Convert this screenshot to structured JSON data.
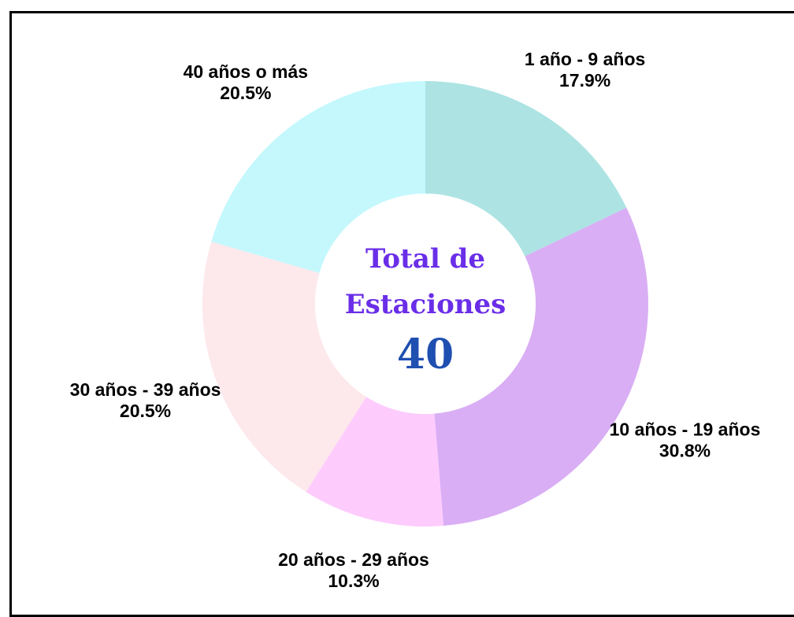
{
  "chart_data": {
    "type": "donut",
    "categories": [
      "1 año - 9 años",
      "10 años - 19 años",
      "20 años - 29 años",
      "30 años - 39 años",
      "40 años o más"
    ],
    "values": [
      17.9,
      30.8,
      10.3,
      20.5,
      20.5
    ],
    "value_labels": [
      "17.9%",
      "30.8%",
      "10.3%",
      "20.5%",
      "20.5%"
    ],
    "colors": [
      "#ade3e3",
      "#d9aef5",
      "#fdccfd",
      "#fde8ec",
      "#c4f8fd"
    ],
    "center_title": "Total de Estaciones",
    "center_value": 40
  }
}
